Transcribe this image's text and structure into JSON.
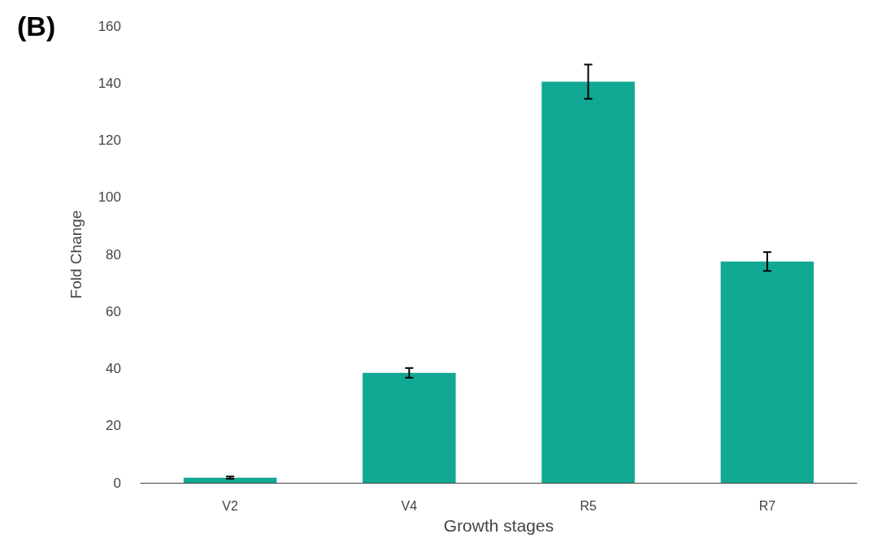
{
  "chart_data": {
    "type": "bar",
    "title": "(B)",
    "xlabel": "Growth stages",
    "ylabel": "Fold Change",
    "categories": [
      "V2",
      "V4",
      "R5",
      "R7"
    ],
    "values": [
      1.8,
      38.5,
      140.5,
      77.5
    ],
    "errors": [
      0.4,
      1.7,
      6,
      3.3
    ],
    "color": "#11a894",
    "ylim": [
      0,
      160
    ],
    "yticks": [
      0,
      20,
      40,
      60,
      80,
      100,
      120,
      140,
      160
    ],
    "grid": false
  }
}
